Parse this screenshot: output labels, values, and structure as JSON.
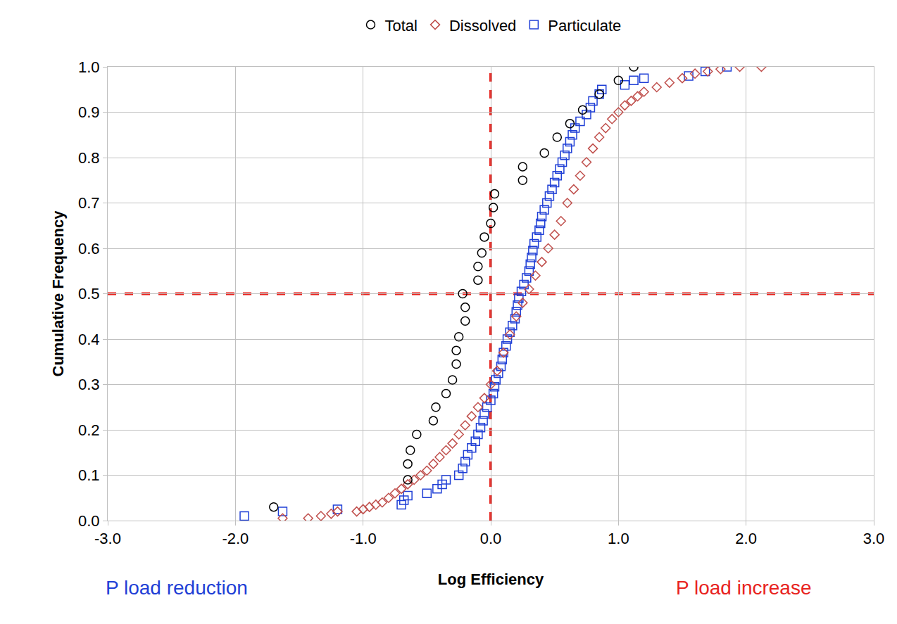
{
  "chart_data": {
    "type": "scatter",
    "x_label": "Log Efficiency",
    "y_label": "Cumulative Frequency",
    "legend": "top",
    "grid": true,
    "xlim": [
      -3,
      3
    ],
    "xticks": [
      {
        "value": -3,
        "label": "-3.0"
      },
      {
        "value": -2,
        "label": "-2.0"
      },
      {
        "value": -1,
        "label": "-1.0"
      },
      {
        "value": 0,
        "label": "0.0"
      },
      {
        "value": 1,
        "label": "1.0"
      },
      {
        "value": 2,
        "label": "2.0"
      },
      {
        "value": 3,
        "label": "3.0"
      }
    ],
    "ylim": [
      0,
      1
    ],
    "yticks": [
      {
        "value": 0,
        "label": "0.0"
      },
      {
        "value": 0.1,
        "label": "0.1"
      },
      {
        "value": 0.2,
        "label": "0.2"
      },
      {
        "value": 0.3,
        "label": "0.3"
      },
      {
        "value": 0.4,
        "label": "0.4"
      },
      {
        "value": 0.5,
        "label": "0.5"
      },
      {
        "value": 0.6,
        "label": "0.6"
      },
      {
        "value": 0.7,
        "label": "0.7"
      },
      {
        "value": 0.8,
        "label": "0.8"
      },
      {
        "value": 0.9,
        "label": "0.9"
      },
      {
        "value": 1,
        "label": "1.0"
      }
    ],
    "reference_lines": [
      {
        "axis": "x",
        "value": 0,
        "color": "#e8231e",
        "line_style": "dashed"
      },
      {
        "axis": "y",
        "value": 0.5,
        "color": "#e8231e",
        "line_style": "dashed"
      }
    ],
    "annotations": [
      {
        "text": "P load reduction",
        "color": "#1f3fd6",
        "side": "left"
      },
      {
        "text": "P load increase",
        "color": "#e8231e",
        "side": "right"
      }
    ],
    "series": [
      {
        "name": "Total",
        "color": "#000000",
        "marker": "circle-open",
        "x": [
          -1.7,
          -0.65,
          -0.65,
          -0.63,
          -0.58,
          -0.45,
          -0.43,
          -0.35,
          -0.3,
          -0.27,
          -0.27,
          -0.25,
          -0.2,
          -0.2,
          -0.22,
          -0.1,
          -0.1,
          -0.07,
          -0.05,
          0,
          0.02,
          0.03,
          0.25,
          0.25,
          0.42,
          0.52,
          0.62,
          0.72,
          0.85,
          1.0,
          1.12
        ],
        "values": [
          0.03,
          0.09,
          0.125,
          0.155,
          0.19,
          0.22,
          0.25,
          0.28,
          0.31,
          0.345,
          0.375,
          0.405,
          0.44,
          0.47,
          0.5,
          0.53,
          0.56,
          0.59,
          0.625,
          0.655,
          0.69,
          0.72,
          0.75,
          0.78,
          0.81,
          0.845,
          0.875,
          0.905,
          0.94,
          0.97,
          1.0
        ]
      },
      {
        "name": "Dissolved",
        "color": "#c0504d",
        "marker": "diamond-open",
        "x": [
          -1.63,
          -1.43,
          -1.33,
          -1.25,
          -1.2,
          -1.05,
          -1.0,
          -0.95,
          -0.9,
          -0.85,
          -0.8,
          -0.75,
          -0.7,
          -0.65,
          -0.6,
          -0.55,
          -0.5,
          -0.45,
          -0.4,
          -0.35,
          -0.3,
          -0.25,
          -0.2,
          -0.15,
          -0.1,
          -0.05,
          0,
          0.05,
          0.1,
          0.15,
          0.2,
          0.25,
          0.3,
          0.35,
          0.4,
          0.45,
          0.5,
          0.55,
          0.6,
          0.65,
          0.7,
          0.75,
          0.8,
          0.85,
          0.9,
          0.95,
          1.0,
          1.05,
          1.1,
          1.15,
          1.2,
          1.3,
          1.4,
          1.5,
          1.6,
          1.7,
          1.8,
          1.95,
          2.12
        ],
        "values": [
          0.005,
          0.005,
          0.01,
          0.015,
          0.02,
          0.02,
          0.025,
          0.03,
          0.035,
          0.04,
          0.05,
          0.06,
          0.07,
          0.08,
          0.09,
          0.1,
          0.11,
          0.125,
          0.14,
          0.155,
          0.17,
          0.19,
          0.21,
          0.23,
          0.25,
          0.27,
          0.3,
          0.33,
          0.37,
          0.41,
          0.45,
          0.48,
          0.51,
          0.54,
          0.57,
          0.6,
          0.63,
          0.66,
          0.7,
          0.73,
          0.76,
          0.79,
          0.82,
          0.845,
          0.865,
          0.885,
          0.9,
          0.915,
          0.925,
          0.935,
          0.945,
          0.955,
          0.965,
          0.975,
          0.985,
          0.99,
          0.995,
          1.0,
          1.0
        ]
      },
      {
        "name": "Particulate",
        "color": "#1f3fd6",
        "marker": "square-open",
        "x": [
          -1.93,
          -1.63,
          -1.2,
          -0.7,
          -0.68,
          -0.65,
          -0.5,
          -0.42,
          -0.38,
          -0.35,
          -0.25,
          -0.22,
          -0.2,
          -0.18,
          -0.15,
          -0.12,
          -0.1,
          -0.08,
          -0.06,
          -0.05,
          -0.03,
          0,
          0.02,
          0.03,
          0.04,
          0.06,
          0.08,
          0.09,
          0.1,
          0.12,
          0.13,
          0.15,
          0.17,
          0.19,
          0.2,
          0.21,
          0.22,
          0.24,
          0.26,
          0.28,
          0.3,
          0.31,
          0.32,
          0.33,
          0.34,
          0.36,
          0.38,
          0.39,
          0.4,
          0.42,
          0.44,
          0.46,
          0.48,
          0.5,
          0.52,
          0.54,
          0.56,
          0.58,
          0.6,
          0.62,
          0.64,
          0.66,
          0.7,
          0.75,
          0.78,
          0.8,
          0.85,
          0.87,
          1.05,
          1.12,
          1.2,
          1.55,
          1.68,
          1.85
        ],
        "values": [
          0.01,
          0.02,
          0.025,
          0.035,
          0.045,
          0.055,
          0.06,
          0.07,
          0.08,
          0.09,
          0.1,
          0.115,
          0.13,
          0.145,
          0.16,
          0.175,
          0.19,
          0.205,
          0.22,
          0.235,
          0.25,
          0.265,
          0.28,
          0.295,
          0.31,
          0.325,
          0.34,
          0.355,
          0.37,
          0.385,
          0.4,
          0.415,
          0.43,
          0.445,
          0.46,
          0.475,
          0.49,
          0.505,
          0.52,
          0.535,
          0.55,
          0.565,
          0.58,
          0.595,
          0.61,
          0.625,
          0.64,
          0.655,
          0.67,
          0.685,
          0.7,
          0.715,
          0.73,
          0.745,
          0.76,
          0.775,
          0.79,
          0.805,
          0.82,
          0.835,
          0.85,
          0.865,
          0.88,
          0.895,
          0.91,
          0.925,
          0.94,
          0.95,
          0.96,
          0.97,
          0.975,
          0.98,
          0.99,
          1.0
        ]
      }
    ]
  }
}
